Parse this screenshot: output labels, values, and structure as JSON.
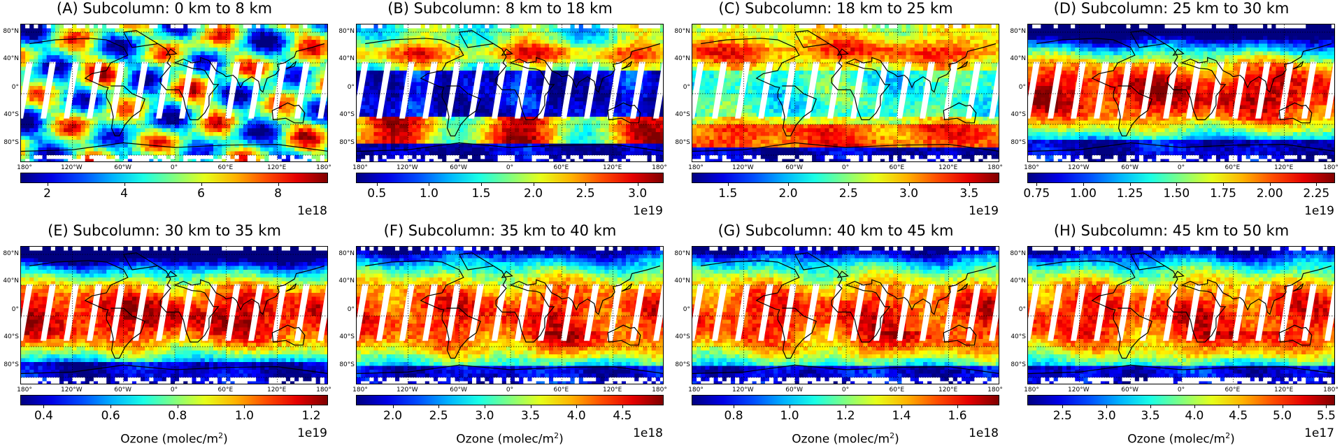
{
  "figure": {
    "lat_labels": [
      "80°N",
      "40°N",
      "0°",
      "40°S",
      "80°S"
    ],
    "lon_labels": [
      "180°",
      "120°W",
      "60°W",
      "0°",
      "60°E",
      "120°E",
      "180°"
    ],
    "axis_label": "Ozone (molec/m",
    "axis_label_sup": "2",
    "axis_label_end": ")"
  },
  "panels": [
    {
      "title": "(A) Subcolumn: 0 km to 8 km",
      "ticks": [
        "2",
        "4",
        "6",
        "8"
      ],
      "tick_values": [
        2,
        4,
        6,
        8
      ],
      "range": [
        1.3,
        9.3
      ],
      "exponent": "1e18",
      "show_axis_label": false,
      "pattern": "tropo"
    },
    {
      "title": "(B) Subcolumn: 8 km to 18 km",
      "ticks": [
        "0.5",
        "1.0",
        "1.5",
        "2.0",
        "2.5",
        "3.0"
      ],
      "tick_values": [
        0.5,
        1.0,
        1.5,
        2.0,
        2.5,
        3.0
      ],
      "range": [
        0.3,
        3.25
      ],
      "exponent": "1e19",
      "show_axis_label": false,
      "pattern": "lowstrat"
    },
    {
      "title": "(C) Subcolumn: 18 km to 25 km",
      "ticks": [
        "1.5",
        "2.0",
        "2.5",
        "3.0",
        "3.5"
      ],
      "tick_values": [
        1.5,
        2.0,
        2.5,
        3.0,
        3.5
      ],
      "range": [
        1.2,
        3.75
      ],
      "exponent": "1e19",
      "show_axis_label": false,
      "pattern": "midstrat"
    },
    {
      "title": "(D) Subcolumn: 25 km to 30 km",
      "ticks": [
        "0.75",
        "1.00",
        "1.25",
        "1.50",
        "1.75",
        "2.00",
        "2.25"
      ],
      "tick_values": [
        0.75,
        1.0,
        1.25,
        1.5,
        1.75,
        2.0,
        2.25
      ],
      "range": [
        0.7,
        2.35
      ],
      "exponent": "1e19",
      "show_axis_label": false,
      "pattern": "tropmax"
    },
    {
      "title": "(E) Subcolumn: 30 km to 35 km",
      "ticks": [
        "0.4",
        "0.6",
        "0.8",
        "1.0",
        "1.2"
      ],
      "tick_values": [
        0.4,
        0.6,
        0.8,
        1.0,
        1.2
      ],
      "range": [
        0.33,
        1.25
      ],
      "exponent": "1e19",
      "show_axis_label": true,
      "pattern": "tropmax"
    },
    {
      "title": "(F) Subcolumn: 35 km to 40 km",
      "ticks": [
        "2.0",
        "2.5",
        "3.0",
        "3.5",
        "4.0",
        "4.5"
      ],
      "tick_values": [
        2.0,
        2.5,
        3.0,
        3.5,
        4.0,
        4.5
      ],
      "range": [
        1.6,
        4.95
      ],
      "exponent": "1e18",
      "show_axis_label": true,
      "pattern": "upper"
    },
    {
      "title": "(G) Subcolumn: 40 km to 45 km",
      "ticks": [
        "0.8",
        "1.0",
        "1.2",
        "1.4",
        "1.6"
      ],
      "tick_values": [
        0.8,
        1.0,
        1.2,
        1.4,
        1.6
      ],
      "range": [
        0.65,
        1.75
      ],
      "exponent": "1e18",
      "show_axis_label": true,
      "pattern": "upper"
    },
    {
      "title": "(H) Subcolumn: 45 km to 50 km",
      "ticks": [
        "2.5",
        "3.0",
        "3.5",
        "4.0",
        "4.5",
        "5.0",
        "5.5"
      ],
      "tick_values": [
        2.5,
        3.0,
        3.5,
        4.0,
        4.5,
        5.0,
        5.5
      ],
      "range": [
        2.1,
        5.6
      ],
      "exponent": "1e17",
      "show_axis_label": true,
      "pattern": "upper"
    }
  ]
}
